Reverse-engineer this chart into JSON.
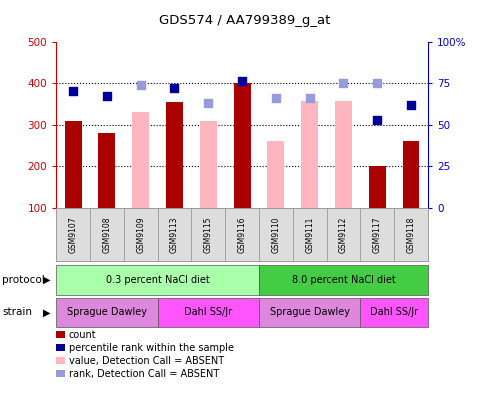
{
  "title": "GDS574 / AA799389_g_at",
  "samples": [
    "GSM9107",
    "GSM9108",
    "GSM9109",
    "GSM9113",
    "GSM9115",
    "GSM9116",
    "GSM9110",
    "GSM9111",
    "GSM9112",
    "GSM9117",
    "GSM9118"
  ],
  "count_values": [
    310,
    280,
    null,
    355,
    null,
    400,
    null,
    null,
    null,
    200,
    260
  ],
  "count_absent": [
    null,
    null,
    330,
    null,
    308,
    null,
    260,
    358,
    357,
    null,
    null
  ],
  "rank_present": [
    70,
    67,
    null,
    72,
    null,
    76,
    null,
    null,
    null,
    53,
    62
  ],
  "rank_absent": [
    null,
    null,
    74,
    null,
    63,
    null,
    66,
    66,
    75,
    75,
    null
  ],
  "ylim_left": [
    100,
    500
  ],
  "ylim_right": [
    0,
    100
  ],
  "left_ticks": [
    100,
    200,
    300,
    400,
    500
  ],
  "right_ticks": [
    0,
    25,
    50,
    75,
    100
  ],
  "right_tick_labels": [
    "0",
    "25",
    "50",
    "75",
    "100%"
  ],
  "protocol_groups": [
    {
      "label": "0.3 percent NaCl diet",
      "start": 0,
      "end": 6,
      "color": "#aaffaa"
    },
    {
      "label": "8.0 percent NaCl diet",
      "start": 6,
      "end": 11,
      "color": "#44cc44"
    }
  ],
  "strain_groups": [
    {
      "label": "Sprague Dawley",
      "start": 0,
      "end": 3,
      "color": "#dd88dd"
    },
    {
      "label": "Dahl SS/Jr",
      "start": 3,
      "end": 6,
      "color": "#ff55ff"
    },
    {
      "label": "Sprague Dawley",
      "start": 6,
      "end": 9,
      "color": "#dd88dd"
    },
    {
      "label": "Dahl SS/Jr",
      "start": 9,
      "end": 11,
      "color": "#ff55ff"
    }
  ],
  "count_color": "#AA0000",
  "absent_bar_color": "#FFB6C1",
  "rank_present_color": "#000099",
  "rank_absent_color": "#9999DD",
  "axis_left_color": "#CC0000",
  "axis_right_color": "#0000CC",
  "legend_items": [
    {
      "color": "#AA0000",
      "label": "count"
    },
    {
      "color": "#000099",
      "label": "percentile rank within the sample"
    },
    {
      "color": "#FFB6C1",
      "label": "value, Detection Call = ABSENT"
    },
    {
      "color": "#9999DD",
      "label": "rank, Detection Call = ABSENT"
    }
  ]
}
